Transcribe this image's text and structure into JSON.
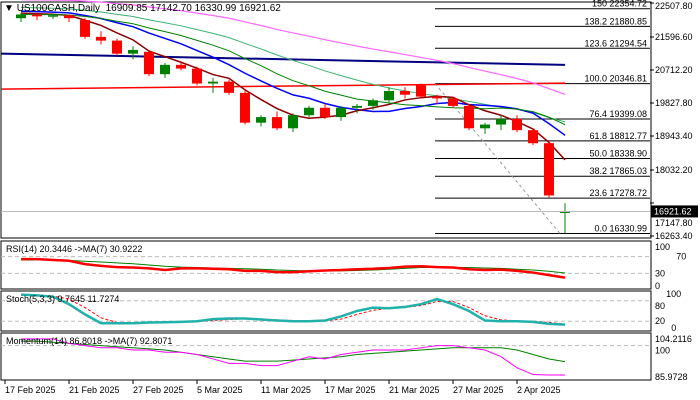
{
  "header": {
    "symbol": "US100CASH,Daily",
    "open": "16909.85",
    "high": "17142.70",
    "low": "16330.99",
    "close": "16921.62"
  },
  "price_axis": {
    "ticks": [
      "22507.80",
      "21596.60",
      "20712.20",
      "19827.80",
      "18943.40",
      "18032.20",
      "17147.80",
      "16263.40"
    ],
    "current": "16921.62"
  },
  "fib_levels": [
    {
      "label": "150 22354.72",
      "price": 22354.72
    },
    {
      "label": "138.2 21880.85",
      "price": 21880.85
    },
    {
      "label": "123.6 21294.54",
      "price": 21294.54
    },
    {
      "label": "100.0 20346.81",
      "price": 20346.81
    },
    {
      "label": "76.4 19399.08",
      "price": 19399.08
    },
    {
      "label": "61.8 18812.77",
      "price": 18812.77
    },
    {
      "label": "50.0 18338.90",
      "price": 18338.9
    },
    {
      "label": "38.2 17865.03",
      "price": 17865.03
    },
    {
      "label": "23.6 17278.72",
      "price": 17278.72
    },
    {
      "label": "0.0 16330.99",
      "price": 16330.99
    }
  ],
  "rsi": {
    "label": "RSI(14) 20.3446  ->MA(7) 30.9222",
    "ticks": [
      "100",
      "70",
      "30",
      "0"
    ],
    "values": [
      64,
      64,
      62,
      60,
      52,
      48,
      45,
      44,
      42,
      38,
      42,
      42,
      41,
      40,
      36,
      36,
      33,
      33,
      35,
      37,
      38,
      40,
      41,
      43,
      46,
      47,
      45,
      44,
      40,
      38,
      39,
      36,
      32,
      26,
      20
    ],
    "ma": [
      62,
      62,
      62,
      61,
      59,
      57,
      55,
      53,
      50,
      47,
      45,
      44,
      43,
      42,
      41,
      40,
      38,
      37,
      36,
      36,
      36,
      37,
      38,
      40,
      42,
      44,
      44,
      44,
      44,
      43,
      42,
      40,
      38,
      35,
      31
    ]
  },
  "stoch": {
    "label": "Stoch(5,3,3) 9.7645 11.7274",
    "ticks": [
      "100",
      "80",
      "20",
      "0"
    ],
    "main": [
      98,
      96,
      92,
      70,
      40,
      14,
      14,
      14,
      16,
      17,
      18,
      20,
      26,
      28,
      28,
      25,
      22,
      20,
      20,
      22,
      34,
      50,
      60,
      58,
      62,
      70,
      85,
      70,
      50,
      22,
      20,
      20,
      18,
      12,
      10
    ],
    "signal": [
      97,
      97,
      94,
      85,
      60,
      30,
      16,
      14,
      15,
      16,
      17,
      19,
      22,
      25,
      27,
      27,
      24,
      22,
      21,
      21,
      26,
      40,
      52,
      58,
      60,
      66,
      78,
      78,
      60,
      36,
      24,
      21,
      20,
      16,
      12
    ]
  },
  "momentum": {
    "label": "Momentum(14) 86.8018  ->MA(7) 92.8071",
    "ticks": [
      "104.2116",
      "100",
      "85.9728"
    ],
    "values": [
      103,
      103,
      103,
      101,
      100,
      99,
      99,
      98,
      98,
      97,
      97,
      96,
      94,
      92,
      92,
      91,
      91,
      93,
      95,
      94,
      96,
      97,
      98,
      98,
      98,
      99,
      100,
      100,
      99,
      98,
      95,
      90,
      87,
      86.8,
      86.8
    ],
    "ma": [
      102,
      102,
      101.5,
      101,
      100.5,
      100,
      99.5,
      99,
      98.5,
      98,
      97,
      96,
      95,
      94,
      93,
      93,
      93,
      93.5,
      94,
      94.5,
      95,
      96,
      96.5,
      97,
      97.5,
      98,
      98.5,
      99,
      99,
      99,
      99,
      98,
      96,
      94,
      92.8
    ]
  },
  "dates": [
    "17 Feb 2025",
    "21 Feb 2025",
    "27 Feb 2025",
    "5 Mar 2025",
    "11 Mar 2025",
    "17 Mar 2025",
    "21 Mar 2025",
    "27 Mar 2025",
    "2 Apr 2025"
  ],
  "chart_data": {
    "type": "candlestick",
    "title": "US100CASH,Daily",
    "ylim": [
      16263.4,
      22507.8
    ],
    "ohlc": [
      [
        22100,
        22250,
        22000,
        22200
      ],
      [
        22200,
        22250,
        22050,
        22150
      ],
      [
        22150,
        22230,
        22080,
        22180
      ],
      [
        22180,
        22200,
        22000,
        22100
      ],
      [
        22050,
        22100,
        21550,
        21600
      ],
      [
        21600,
        21750,
        21400,
        21500
      ],
      [
        21500,
        21550,
        21100,
        21150
      ],
      [
        21150,
        21350,
        21000,
        21250
      ],
      [
        21200,
        21250,
        20550,
        20600
      ],
      [
        20600,
        20900,
        20500,
        20850
      ],
      [
        20850,
        20950,
        20700,
        20750
      ],
      [
        20750,
        20800,
        20300,
        20350
      ],
      [
        20350,
        20500,
        20100,
        20400
      ],
      [
        20400,
        20450,
        20050,
        20100
      ],
      [
        20100,
        20200,
        19250,
        19300
      ],
      [
        19300,
        19500,
        19200,
        19450
      ],
      [
        19450,
        19600,
        19100,
        19150
      ],
      [
        19150,
        19550,
        19050,
        19500
      ],
      [
        19500,
        19750,
        19450,
        19700
      ],
      [
        19700,
        19800,
        19400,
        19450
      ],
      [
        19450,
        19750,
        19350,
        19700
      ],
      [
        19700,
        19800,
        19550,
        19750
      ],
      [
        19750,
        19950,
        19650,
        19900
      ],
      [
        19900,
        20250,
        19850,
        20150
      ],
      [
        20150,
        20250,
        19950,
        20050
      ],
      [
        20300,
        20350,
        19950,
        20000
      ],
      [
        20000,
        20050,
        19800,
        19950
      ],
      [
        19950,
        20000,
        19700,
        19750
      ],
      [
        19750,
        19800,
        19100,
        19150
      ],
      [
        19150,
        19300,
        19000,
        19250
      ],
      [
        19250,
        19500,
        19100,
        19400
      ],
      [
        19400,
        19500,
        19050,
        19100
      ],
      [
        19100,
        19150,
        18700,
        18750
      ],
      [
        18750,
        18800,
        17300,
        17350
      ],
      [
        16909.85,
        17142.7,
        16330.99,
        16921.62
      ]
    ],
    "colors": {
      "up": "#008000",
      "down": "#ff0000"
    }
  }
}
